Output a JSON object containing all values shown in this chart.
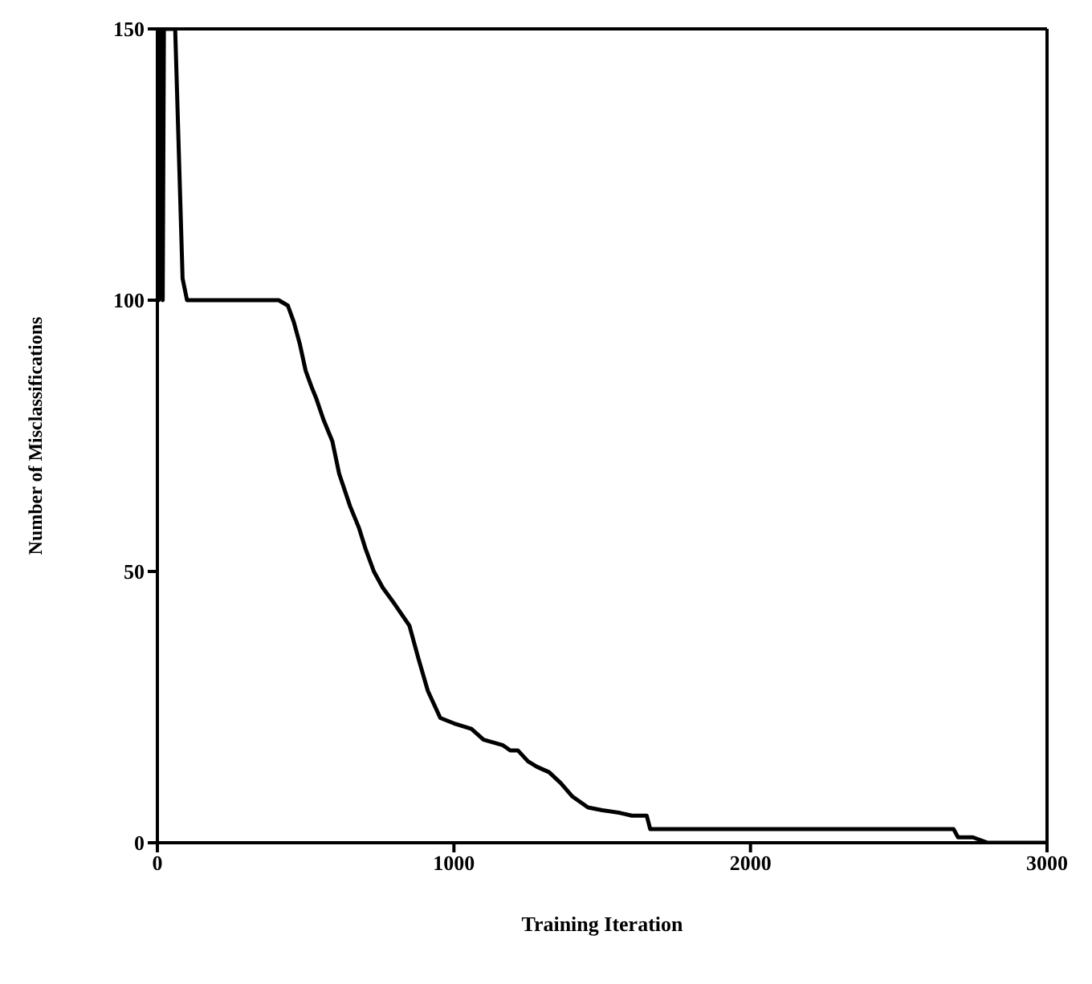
{
  "chart_data": {
    "type": "line",
    "xlabel": "Training Iteration",
    "ylabel": "Number of Misclassifications",
    "xlim": [
      0,
      3000
    ],
    "ylim": [
      0,
      150
    ],
    "xticks": [
      0,
      1000,
      2000,
      3000
    ],
    "yticks": [
      0,
      50,
      100,
      150
    ],
    "grid": false,
    "marker": "none",
    "line_style": "solid",
    "series": [
      {
        "color": "#000000",
        "x": [
          0,
          5,
          10,
          18,
          22,
          60,
          85,
          100,
          200,
          300,
          409,
          440,
          460,
          480,
          500,
          520,
          535,
          560,
          590,
          613,
          650,
          680,
          703,
          730,
          760,
          800,
          850,
          880,
          912,
          954,
          1000,
          1059,
          1100,
          1164,
          1190,
          1216,
          1250,
          1280,
          1321,
          1360,
          1400,
          1452,
          1500,
          1560,
          1600,
          1650,
          1662,
          2000,
          2500,
          2685,
          2700,
          2750,
          2800,
          3000
        ],
        "values": [
          100,
          100,
          150,
          100,
          150,
          150,
          104,
          100,
          100,
          100,
          100,
          99,
          96,
          92,
          87,
          84,
          82,
          78,
          74,
          68,
          62,
          58,
          54,
          50,
          47,
          44,
          40,
          34,
          28,
          23,
          22,
          21,
          19,
          18,
          17,
          17,
          15,
          14,
          13,
          11,
          8.5,
          6.5,
          6,
          5.5,
          5,
          5,
          2.5,
          2.5,
          2.5,
          2.5,
          1,
          1,
          0,
          0
        ]
      }
    ]
  }
}
